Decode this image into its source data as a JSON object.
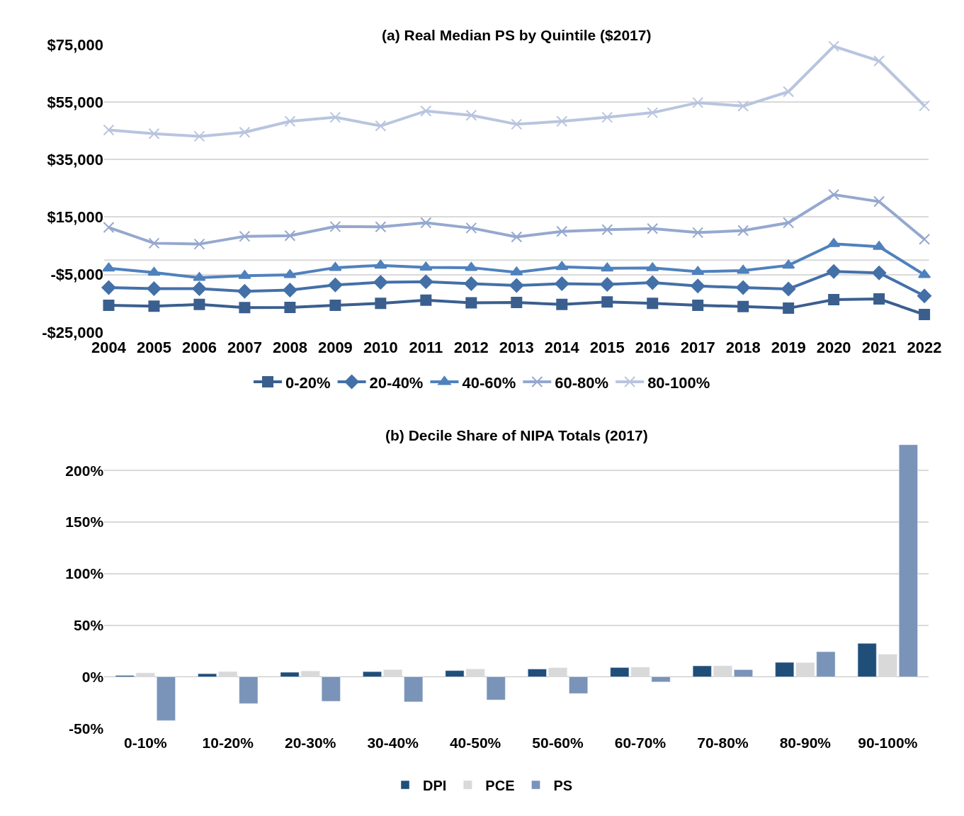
{
  "chart_data": [
    {
      "type": "line",
      "title": "(a) Real Median PS by Quintile ($2017)",
      "categories": [
        "2004",
        "2005",
        "2006",
        "2007",
        "2008",
        "2009",
        "2010",
        "2011",
        "2012",
        "2013",
        "2014",
        "2015",
        "2016",
        "2017",
        "2018",
        "2019",
        "2020",
        "2021",
        "2022"
      ],
      "series": [
        {
          "name": "0-20%",
          "color": "#3a5f8f",
          "marker": "square",
          "values": [
            -15700,
            -16000,
            -15400,
            -16500,
            -16400,
            -15700,
            -15000,
            -13900,
            -14800,
            -14700,
            -15400,
            -14500,
            -15000,
            -15700,
            -16100,
            -16700,
            -13700,
            -13500,
            -18900
          ]
        },
        {
          "name": "20-40%",
          "color": "#4470a8",
          "marker": "diamond",
          "values": [
            -9500,
            -9900,
            -9900,
            -10800,
            -10400,
            -8600,
            -7700,
            -7500,
            -8200,
            -8800,
            -8200,
            -8400,
            -7800,
            -9000,
            -9500,
            -10000,
            -3900,
            -4400,
            -12400
          ]
        },
        {
          "name": "40-60%",
          "color": "#4f81bd",
          "marker": "triangle",
          "values": [
            -2800,
            -4300,
            -6100,
            -5400,
            -5100,
            -2600,
            -1800,
            -2500,
            -2600,
            -4200,
            -2300,
            -2800,
            -2700,
            -4000,
            -3600,
            -1800,
            5700,
            4700,
            -5100
          ]
        },
        {
          "name": "60-80%",
          "color": "#95a8cf",
          "marker": "cross",
          "values": [
            11400,
            5900,
            5600,
            8300,
            8500,
            11700,
            11600,
            13000,
            11200,
            8100,
            10000,
            10600,
            11000,
            9600,
            10300,
            13000,
            22800,
            20400,
            7300
          ]
        },
        {
          "name": "80-100%",
          "color": "#b9c5df",
          "marker": "cross",
          "values": [
            45300,
            44000,
            43100,
            44500,
            48300,
            49700,
            46700,
            51900,
            50400,
            47300,
            48300,
            49700,
            51300,
            54800,
            53600,
            58600,
            74400,
            69300,
            53700
          ]
        }
      ],
      "ylim": [
        -25000,
        75000
      ],
      "yticks": [
        {
          "value": -25000,
          "label": "-$25,000"
        },
        {
          "value": -5000,
          "label": "-$5,000"
        },
        {
          "value": 15000,
          "label": "$15,000"
        },
        {
          "value": 35000,
          "label": "$35,000"
        },
        {
          "value": 55000,
          "label": "$55,000"
        },
        {
          "value": 75000,
          "label": "$75,000"
        }
      ],
      "ref_lines": [
        {
          "axis": "y",
          "value": 0,
          "color": "#d9d9d9"
        }
      ],
      "grid": "y",
      "legend": "bottom"
    },
    {
      "type": "bar",
      "title": "(b) Decile Share of NIPA Totals (2017)",
      "categories": [
        "0-10%",
        "10-20%",
        "20-30%",
        "30-40%",
        "40-50%",
        "50-60%",
        "60-70%",
        "70-80%",
        "80-90%",
        "90-100%"
      ],
      "series": [
        {
          "name": "DPI",
          "color": "#1f4e79",
          "values": [
            1.2,
            3,
            4.4,
            5,
            6,
            7.5,
            9,
            10.6,
            14,
            32.4
          ]
        },
        {
          "name": "PCE",
          "color": "#d9d9d9",
          "values": [
            3.7,
            5,
            5.6,
            6.9,
            7.5,
            8.7,
            9.3,
            10.6,
            13.7,
            21.8
          ]
        },
        {
          "name": "PS",
          "color": "#7a93b8",
          "values": [
            -42.4,
            -26,
            -23.7,
            -24.3,
            -22.4,
            -16.2,
            -5,
            6.9,
            24.3,
            225
          ]
        }
      ],
      "ylim": [
        -50,
        225
      ],
      "yticks": [
        {
          "value": -50,
          "label": "-50%"
        },
        {
          "value": 0,
          "label": "0%"
        },
        {
          "value": 50,
          "label": "50%"
        },
        {
          "value": 100,
          "label": "100%"
        },
        {
          "value": 150,
          "label": "150%"
        },
        {
          "value": 200,
          "label": "200%"
        }
      ],
      "grid": "y",
      "legend": "bottom"
    }
  ]
}
